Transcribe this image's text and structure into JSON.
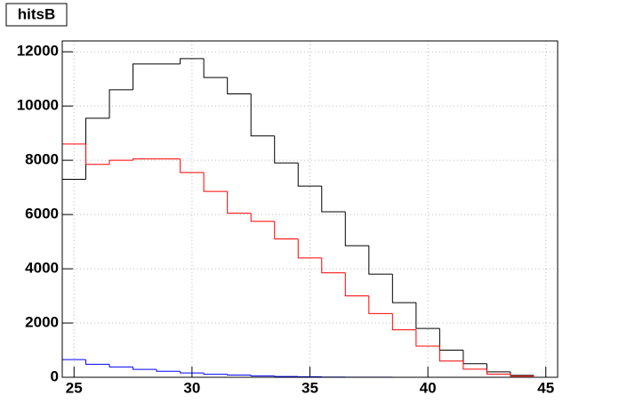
{
  "chart_data": {
    "type": "histogram",
    "title": "hitsB",
    "bins": [
      24.5,
      25.5,
      26.5,
      27.5,
      28.5,
      29.5,
      30.5,
      31.5,
      32.5,
      33.5,
      34.5,
      35.5,
      36.5,
      37.5,
      38.5,
      39.5,
      40.5,
      41.5,
      42.5,
      43.5,
      44.5
    ],
    "series": [
      {
        "color": "#000000",
        "values": [
          7300,
          9550,
          10600,
          11550,
          11550,
          11750,
          11050,
          10450,
          8900,
          7900,
          7050,
          6100,
          4850,
          3800,
          2750,
          1800,
          1000,
          500,
          200,
          70
        ]
      },
      {
        "color": "#ff0000",
        "values": [
          8600,
          7850,
          8000,
          8050,
          8050,
          7550,
          6850,
          6050,
          5750,
          5100,
          4400,
          3850,
          3000,
          2350,
          1750,
          1150,
          600,
          300,
          120,
          40
        ]
      },
      {
        "color": "#0000ff",
        "values": [
          650,
          480,
          380,
          290,
          220,
          160,
          110,
          80,
          50,
          30,
          20,
          10,
          5,
          3,
          2,
          1,
          0,
          0,
          0,
          0
        ]
      }
    ],
    "xlim": [
      24.5,
      45.5
    ],
    "xticks": [
      25,
      30,
      35,
      40,
      45
    ],
    "ylim": [
      0,
      12400
    ],
    "yticks": [
      0,
      2000,
      4000,
      6000,
      8000,
      10000,
      12000
    ],
    "grid": true
  }
}
